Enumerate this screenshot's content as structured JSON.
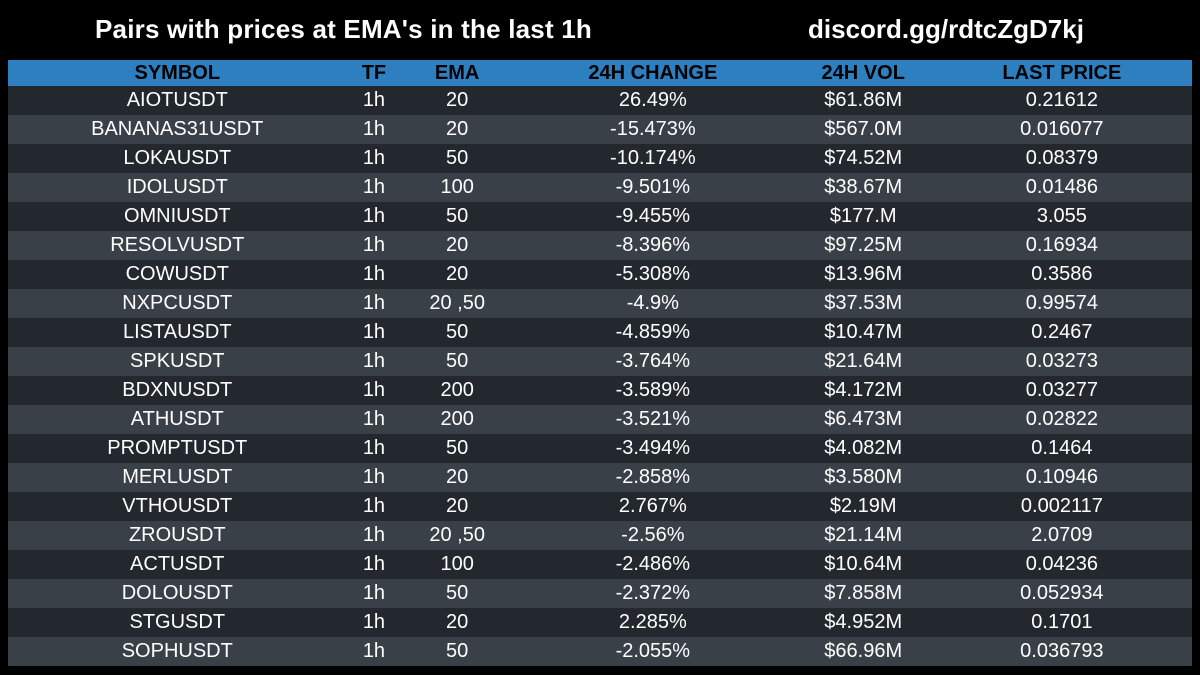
{
  "header": {
    "title": "Pairs with prices at EMA's in the last 1h",
    "link": "discord.gg/rdtcZgD7kj"
  },
  "columns": {
    "symbol": "SYMBOL",
    "tf": "TF",
    "ema": "EMA",
    "change": "24H CHANGE",
    "vol": "24H VOL",
    "price": "LAST PRICE"
  },
  "rows": [
    {
      "symbol": "AIOTUSDT",
      "tf": "1h",
      "ema": "20",
      "change": "26.49%",
      "vol": "$61.86M",
      "price": "0.21612"
    },
    {
      "symbol": "BANANAS31USDT",
      "tf": "1h",
      "ema": "20",
      "change": "-15.473%",
      "vol": "$567.0M",
      "price": "0.016077"
    },
    {
      "symbol": "LOKAUSDT",
      "tf": "1h",
      "ema": "50",
      "change": "-10.174%",
      "vol": "$74.52M",
      "price": "0.08379"
    },
    {
      "symbol": "IDOLUSDT",
      "tf": "1h",
      "ema": "100",
      "change": "-9.501%",
      "vol": "$38.67M",
      "price": "0.01486"
    },
    {
      "symbol": "OMNIUSDT",
      "tf": "1h",
      "ema": "50",
      "change": "-9.455%",
      "vol": "$177.M",
      "price": "3.055"
    },
    {
      "symbol": "RESOLVUSDT",
      "tf": "1h",
      "ema": "20",
      "change": "-8.396%",
      "vol": "$97.25M",
      "price": "0.16934"
    },
    {
      "symbol": "COWUSDT",
      "tf": "1h",
      "ema": "20",
      "change": "-5.308%",
      "vol": "$13.96M",
      "price": "0.3586"
    },
    {
      "symbol": "NXPCUSDT",
      "tf": "1h",
      "ema": "20 ,50",
      "change": "-4.9%",
      "vol": "$37.53M",
      "price": "0.99574"
    },
    {
      "symbol": "LISTAUSDT",
      "tf": "1h",
      "ema": "50",
      "change": "-4.859%",
      "vol": "$10.47M",
      "price": "0.2467"
    },
    {
      "symbol": "SPKUSDT",
      "tf": "1h",
      "ema": "50",
      "change": "-3.764%",
      "vol": "$21.64M",
      "price": "0.03273"
    },
    {
      "symbol": "BDXNUSDT",
      "tf": "1h",
      "ema": "200",
      "change": "-3.589%",
      "vol": "$4.172M",
      "price": "0.03277"
    },
    {
      "symbol": "ATHUSDT",
      "tf": "1h",
      "ema": "200",
      "change": "-3.521%",
      "vol": "$6.473M",
      "price": "0.02822"
    },
    {
      "symbol": "PROMPTUSDT",
      "tf": "1h",
      "ema": "50",
      "change": "-3.494%",
      "vol": "$4.082M",
      "price": "0.1464"
    },
    {
      "symbol": "MERLUSDT",
      "tf": "1h",
      "ema": "20",
      "change": "-2.858%",
      "vol": "$3.580M",
      "price": "0.10946"
    },
    {
      "symbol": "VTHOUSDT",
      "tf": "1h",
      "ema": "20",
      "change": "2.767%",
      "vol": "$2.19M",
      "price": "0.002117"
    },
    {
      "symbol": "ZROUSDT",
      "tf": "1h",
      "ema": "20 ,50",
      "change": "-2.56%",
      "vol": "$21.14M",
      "price": "2.0709"
    },
    {
      "symbol": "ACTUSDT",
      "tf": "1h",
      "ema": "100",
      "change": "-2.486%",
      "vol": "$10.64M",
      "price": "0.04236"
    },
    {
      "symbol": "DOLOUSDT",
      "tf": "1h",
      "ema": "50",
      "change": "-2.372%",
      "vol": "$7.858M",
      "price": "0.052934"
    },
    {
      "symbol": "STGUSDT",
      "tf": "1h",
      "ema": "20",
      "change": "2.285%",
      "vol": "$4.952M",
      "price": "0.1701"
    },
    {
      "symbol": "SOPHUSDT",
      "tf": "1h",
      "ema": "50",
      "change": "-2.055%",
      "vol": "$66.96M",
      "price": "0.036793"
    }
  ],
  "colors": {
    "background": "#000000",
    "header_bar": "#2e7fc0",
    "row_dark": "#22282e",
    "row_light": "#3a4048",
    "text": "#ffffff"
  }
}
